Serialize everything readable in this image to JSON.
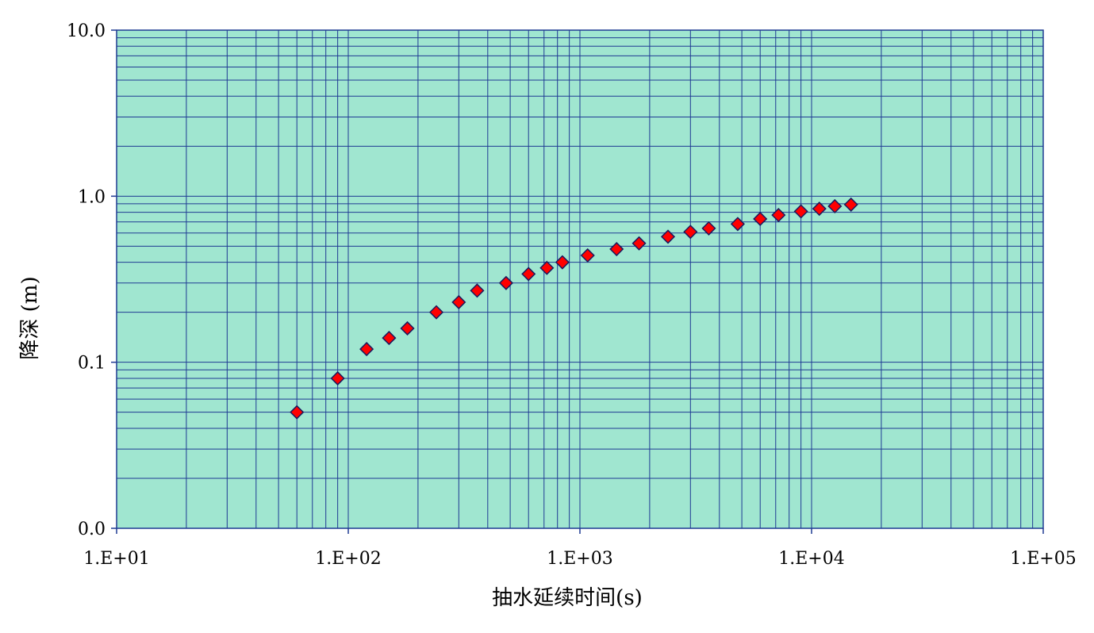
{
  "chart_data": {
    "type": "scatter",
    "xlabel": "抽水延续时间(s)",
    "ylabel": "降深 (m)",
    "x_scale": "log",
    "y_scale": "log",
    "xlim": [
      10,
      100000
    ],
    "ylim": [
      0.01,
      10
    ],
    "grid": true,
    "x_ticks": [
      {
        "value": 10,
        "label": "1.E+01"
      },
      {
        "value": 100,
        "label": "1.E+02"
      },
      {
        "value": 1000,
        "label": "1.E+03"
      },
      {
        "value": 10000,
        "label": "1.E+04"
      },
      {
        "value": 100000,
        "label": "1.E+05"
      }
    ],
    "y_ticks": [
      {
        "value": 0.01,
        "label": "0.0"
      },
      {
        "value": 0.1,
        "label": "0.1"
      },
      {
        "value": 1,
        "label": "1.0"
      },
      {
        "value": 10,
        "label": "10.0"
      }
    ],
    "series": [
      {
        "marker": "diamond",
        "points": [
          {
            "x": 60,
            "y": 0.05
          },
          {
            "x": 90,
            "y": 0.08
          },
          {
            "x": 120,
            "y": 0.12
          },
          {
            "x": 150,
            "y": 0.14
          },
          {
            "x": 180,
            "y": 0.16
          },
          {
            "x": 240,
            "y": 0.2
          },
          {
            "x": 300,
            "y": 0.23
          },
          {
            "x": 360,
            "y": 0.27
          },
          {
            "x": 480,
            "y": 0.3
          },
          {
            "x": 600,
            "y": 0.34
          },
          {
            "x": 720,
            "y": 0.37
          },
          {
            "x": 840,
            "y": 0.4
          },
          {
            "x": 1080,
            "y": 0.44
          },
          {
            "x": 1440,
            "y": 0.48
          },
          {
            "x": 1800,
            "y": 0.52
          },
          {
            "x": 2400,
            "y": 0.57
          },
          {
            "x": 3000,
            "y": 0.61
          },
          {
            "x": 3600,
            "y": 0.64
          },
          {
            "x": 4800,
            "y": 0.68
          },
          {
            "x": 6000,
            "y": 0.73
          },
          {
            "x": 7200,
            "y": 0.77
          },
          {
            "x": 9000,
            "y": 0.81
          },
          {
            "x": 10800,
            "y": 0.84
          },
          {
            "x": 12600,
            "y": 0.87
          },
          {
            "x": 14800,
            "y": 0.89
          }
        ]
      }
    ],
    "colors": {
      "plot_background": "#a0e6d0",
      "grid": "#1f3a93",
      "axis": "#1f3a93",
      "marker_fill": "#ff0000",
      "marker_edge": "#1a1a5e"
    }
  }
}
